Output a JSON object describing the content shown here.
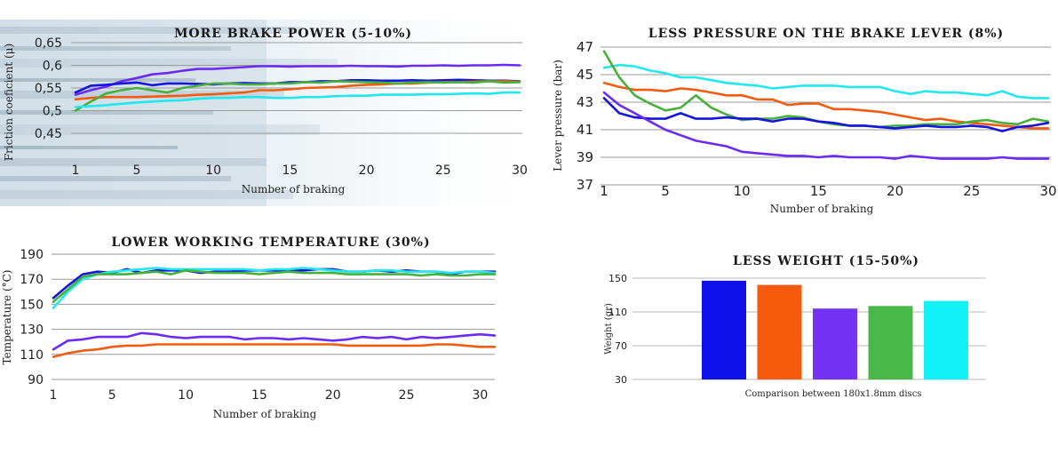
{
  "chart_data": [
    {
      "type": "line",
      "title": "MORE BRAKE POWER (5-10%)",
      "xlabel": "Number of braking",
      "ylabel": "Friction coeficient (μ)",
      "xlim": [
        1,
        30
      ],
      "ylim": [
        0.45,
        0.65
      ],
      "xticks": [
        "1",
        "5",
        "10",
        "15",
        "20",
        "25",
        "30"
      ],
      "yticks": [
        "0,65",
        "0,6",
        "0,55",
        "0,5",
        "0,45"
      ],
      "grid": true,
      "x": [
        1,
        2,
        3,
        4,
        5,
        6,
        7,
        8,
        9,
        10,
        11,
        12,
        13,
        14,
        15,
        16,
        17,
        18,
        19,
        20,
        21,
        22,
        23,
        24,
        25,
        26,
        27,
        28,
        29,
        30
      ],
      "series": [
        {
          "color": "#6a2cf5",
          "values": [
            0.535,
            0.545,
            0.553,
            0.565,
            0.572,
            0.58,
            0.583,
            0.588,
            0.592,
            0.592,
            0.594,
            0.596,
            0.598,
            0.598,
            0.597,
            0.598,
            0.598,
            0.598,
            0.599,
            0.598,
            0.598,
            0.597,
            0.599,
            0.599,
            0.6,
            0.599,
            0.6,
            0.6,
            0.601,
            0.6
          ]
        },
        {
          "color": "#1515e0",
          "values": [
            0.54,
            0.555,
            0.557,
            0.56,
            0.562,
            0.556,
            0.56,
            0.56,
            0.559,
            0.558,
            0.56,
            0.561,
            0.56,
            0.56,
            0.563,
            0.563,
            0.565,
            0.565,
            0.567,
            0.567,
            0.566,
            0.566,
            0.567,
            0.566,
            0.567,
            0.568,
            0.567,
            0.566,
            0.566,
            0.565
          ]
        },
        {
          "color": "#f25c10",
          "values": [
            0.525,
            0.528,
            0.53,
            0.53,
            0.53,
            0.531,
            0.532,
            0.533,
            0.535,
            0.536,
            0.538,
            0.54,
            0.545,
            0.545,
            0.547,
            0.55,
            0.551,
            0.552,
            0.555,
            0.557,
            0.558,
            0.56,
            0.56,
            0.562,
            0.563,
            0.563,
            0.564,
            0.565,
            0.565,
            0.564
          ]
        },
        {
          "color": "#47b03a",
          "values": [
            0.5,
            0.52,
            0.538,
            0.545,
            0.55,
            0.545,
            0.54,
            0.55,
            0.555,
            0.56,
            0.56,
            0.558,
            0.558,
            0.56,
            0.56,
            0.563,
            0.562,
            0.565,
            0.564,
            0.563,
            0.562,
            0.56,
            0.562,
            0.563,
            0.562,
            0.563,
            0.562,
            0.565,
            0.562,
            0.563
          ]
        },
        {
          "color": "#22e8ee",
          "values": [
            0.508,
            0.51,
            0.512,
            0.515,
            0.518,
            0.52,
            0.522,
            0.523,
            0.526,
            0.528,
            0.528,
            0.53,
            0.53,
            0.528,
            0.528,
            0.53,
            0.53,
            0.532,
            0.533,
            0.533,
            0.535,
            0.535,
            0.535,
            0.536,
            0.536,
            0.537,
            0.538,
            0.537,
            0.54,
            0.54
          ]
        }
      ]
    },
    {
      "type": "line",
      "title": "LESS PRESSURE ON THE BRAKE LEVER (8%)",
      "xlabel": "Number of braking",
      "ylabel": "Lever pressure (bar)",
      "xlim": [
        1,
        30
      ],
      "ylim": [
        37,
        47
      ],
      "xticks": [
        "1",
        "5",
        "10",
        "15",
        "20",
        "25",
        "30"
      ],
      "yticks": [
        "47",
        "45",
        "43",
        "41",
        "39",
        "37"
      ],
      "grid": true,
      "x": [
        1,
        2,
        3,
        4,
        5,
        6,
        7,
        8,
        9,
        10,
        11,
        12,
        13,
        14,
        15,
        16,
        17,
        18,
        19,
        20,
        21,
        22,
        23,
        24,
        25,
        26,
        27,
        28,
        29,
        30
      ],
      "series": [
        {
          "color": "#22e8ee",
          "values": [
            45.5,
            45.7,
            45.6,
            45.3,
            45.1,
            44.8,
            44.8,
            44.6,
            44.4,
            44.3,
            44.2,
            44.0,
            44.1,
            44.2,
            44.2,
            44.2,
            44.1,
            44.1,
            44.1,
            43.8,
            43.6,
            43.8,
            43.7,
            43.7,
            43.6,
            43.5,
            43.8,
            43.4,
            43.3,
            43.3
          ]
        },
        {
          "color": "#f25c10",
          "values": [
            44.4,
            44.1,
            43.9,
            43.9,
            43.8,
            44.0,
            43.9,
            43.7,
            43.5,
            43.5,
            43.2,
            43.2,
            42.8,
            42.9,
            42.9,
            42.5,
            42.5,
            42.4,
            42.3,
            42.1,
            41.9,
            41.7,
            41.8,
            41.6,
            41.5,
            41.4,
            41.3,
            41.2,
            41.1,
            41.1
          ]
        },
        {
          "color": "#47b03a",
          "values": [
            46.7,
            44.8,
            43.5,
            42.9,
            42.4,
            42.6,
            43.5,
            42.6,
            42.1,
            41.7,
            41.8,
            41.8,
            42.0,
            41.9,
            41.6,
            41.4,
            41.3,
            41.3,
            41.2,
            41.3,
            41.3,
            41.4,
            41.4,
            41.4,
            41.6,
            41.7,
            41.5,
            41.4,
            41.8,
            41.6
          ]
        },
        {
          "color": "#1515e0",
          "values": [
            43.3,
            42.2,
            41.9,
            41.8,
            41.8,
            42.2,
            41.8,
            41.8,
            41.9,
            41.8,
            41.8,
            41.6,
            41.8,
            41.8,
            41.6,
            41.5,
            41.3,
            41.3,
            41.2,
            41.1,
            41.2,
            41.3,
            41.2,
            41.2,
            41.3,
            41.2,
            40.9,
            41.2,
            41.3,
            41.5
          ]
        },
        {
          "color": "#6a2cf5",
          "values": [
            43.7,
            42.8,
            42.2,
            41.6,
            41.0,
            40.6,
            40.2,
            40.0,
            39.8,
            39.4,
            39.3,
            39.2,
            39.1,
            39.1,
            39.0,
            39.1,
            39.0,
            39.0,
            39.0,
            38.9,
            39.1,
            39.0,
            38.9,
            38.9,
            38.9,
            38.9,
            39.0,
            38.9,
            38.9,
            38.9
          ]
        }
      ]
    },
    {
      "type": "line",
      "title": "LOWER WORKING TEMPERATURE (30%)",
      "xlabel": "Number of braking",
      "ylabel": "Temperature (°C)",
      "xlim": [
        1,
        31
      ],
      "ylim": [
        90,
        190
      ],
      "xticks": [
        "1",
        "5",
        "10",
        "15",
        "20",
        "25",
        "30"
      ],
      "yticks": [
        "190",
        "170",
        "150",
        "130",
        "110",
        "90"
      ],
      "grid": true,
      "x": [
        1,
        2,
        3,
        4,
        5,
        6,
        7,
        8,
        9,
        10,
        11,
        12,
        13,
        14,
        15,
        16,
        17,
        18,
        19,
        20,
        21,
        22,
        23,
        24,
        25,
        26,
        27,
        28,
        29,
        30,
        31
      ],
      "series": [
        {
          "color": "#1515e0",
          "values": [
            155,
            165,
            174,
            176,
            175,
            178,
            175,
            177,
            177,
            177,
            175,
            176,
            176,
            177,
            177,
            177,
            177,
            177,
            178,
            178,
            176,
            176,
            177,
            176,
            177,
            176,
            176,
            174,
            176,
            176,
            176
          ]
        },
        {
          "color": "#22e8ee",
          "values": [
            147,
            160,
            170,
            174,
            176,
            177,
            178,
            179,
            178,
            178,
            178,
            178,
            178,
            178,
            177,
            178,
            178,
            179,
            178,
            177,
            176,
            176,
            177,
            177,
            176,
            176,
            176,
            175,
            176,
            176,
            175
          ]
        },
        {
          "color": "#47b03a",
          "values": [
            152,
            162,
            172,
            174,
            174,
            174,
            175,
            176,
            174,
            177,
            176,
            175,
            175,
            175,
            174,
            175,
            176,
            175,
            175,
            175,
            174,
            174,
            174,
            174,
            174,
            173,
            174,
            173,
            173,
            174,
            174
          ]
        },
        {
          "color": "#6a2cf5",
          "values": [
            114,
            121,
            122,
            124,
            124,
            124,
            127,
            126,
            124,
            123,
            124,
            124,
            124,
            122,
            123,
            123,
            122,
            123,
            122,
            121,
            122,
            124,
            123,
            124,
            122,
            124,
            123,
            124,
            125,
            126,
            125
          ]
        },
        {
          "color": "#f25c10",
          "values": [
            108,
            111,
            113,
            114,
            116,
            117,
            117,
            118,
            118,
            118,
            118,
            118,
            118,
            118,
            118,
            118,
            118,
            118,
            118,
            118,
            117,
            117,
            117,
            117,
            117,
            117,
            118,
            118,
            117,
            116,
            116
          ]
        }
      ]
    },
    {
      "type": "bar",
      "title": "LESS WEIGHT (15-50%)",
      "xlabel": "Comparison between 180x1.8mm discs",
      "ylabel": "Weight (gr)",
      "ylim": [
        30,
        150
      ],
      "yticks": [
        "150",
        "110",
        "70",
        "30"
      ],
      "grid": true,
      "values": [
        147,
        142,
        114,
        117,
        123
      ],
      "colors": [
        "#1010e8",
        "#f75a0c",
        "#7432f5",
        "#48b848",
        "#10f2f8"
      ]
    }
  ]
}
